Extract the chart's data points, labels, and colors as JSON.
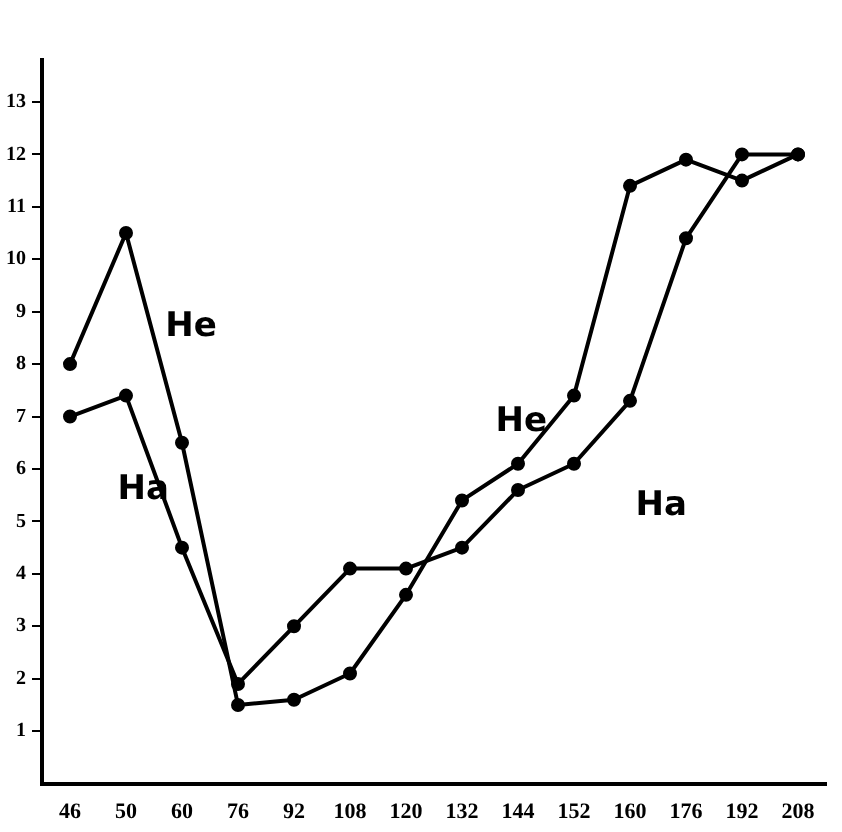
{
  "chart_data": {
    "type": "line",
    "categories": [
      "46",
      "50",
      "60",
      "76",
      "92",
      "108",
      "120",
      "132",
      "144",
      "152",
      "160",
      "176",
      "192",
      "208"
    ],
    "series": [
      {
        "name": "He",
        "color": "#000000",
        "values": [
          8,
          10.5,
          6.5,
          1.5,
          1.6,
          2.1,
          3.6,
          5.4,
          6.1,
          7.4,
          11.4,
          11.9,
          11.5,
          12
        ]
      },
      {
        "name": "Ha",
        "color": "#000000",
        "values": [
          7,
          7.4,
          4.5,
          1.9,
          3,
          4.1,
          4.1,
          4.5,
          5.6,
          6.1,
          7.3,
          10.4,
          12,
          12
        ]
      }
    ],
    "ylim": [
      0,
      13.8
    ],
    "yticks": [
      1,
      2,
      3,
      4,
      5,
      6,
      7,
      8,
      9,
      10,
      11,
      12,
      13
    ],
    "grid": false,
    "legend": false,
    "marker": "circle",
    "line_style": "solid"
  }
}
